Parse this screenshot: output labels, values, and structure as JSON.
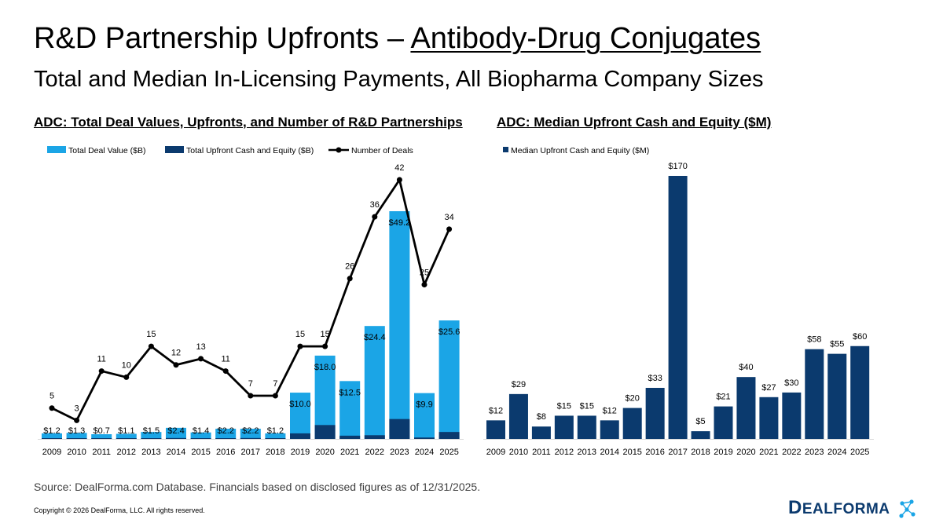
{
  "header": {
    "title_prefix": "R&D Partnership Upfronts – ",
    "title_underlined": "Antibody-Drug Conjugates",
    "subtitle": "Total and Median In-Licensing Payments, All Biopharma Company Sizes"
  },
  "chart_titles": {
    "left": "ADC: Total Deal Values, Upfronts, and Number of R&D Partnerships",
    "right": "ADC: Median Upfront Cash and Equity ($M)"
  },
  "colors": {
    "light_blue": "#1ba5e6",
    "dark_navy": "#0b3a6e",
    "line": "#000000"
  },
  "chart_data": [
    {
      "type": "bar",
      "title": "ADC: Total Deal Values, Upfronts, and Number of R&D Partnerships",
      "categories": [
        "2009",
        "2010",
        "2011",
        "2012",
        "2013",
        "2014",
        "2015",
        "2016",
        "2017",
        "2018",
        "2019",
        "2020",
        "2021",
        "2022",
        "2023",
        "2024",
        "2025"
      ],
      "series": [
        {
          "name": "Total Deal Value ($B)",
          "kind": "bar",
          "values": [
            1.2,
            1.3,
            0.7,
            1.1,
            1.5,
            2.4,
            1.4,
            2.2,
            2.2,
            1.2,
            10.0,
            18.0,
            12.5,
            24.4,
            49.2,
            9.9,
            25.6
          ],
          "labels": [
            "$1.2",
            "$1.3",
            "$0.7",
            "$1.1",
            "$1.5",
            "$2.4",
            "$1.4",
            "$2.2",
            "$2.2",
            "$1.2",
            "$10.0",
            "$18.0",
            "$12.5",
            "$24.4",
            "$49.2",
            "$9.9",
            "$25.6"
          ]
        },
        {
          "name": "Total Upfront Cash and Equity ($B)",
          "kind": "bar",
          "values": [
            0.1,
            0.1,
            0.05,
            0.1,
            0.1,
            0.2,
            0.1,
            0.15,
            0.2,
            0.1,
            1.2,
            3.0,
            0.7,
            0.8,
            4.3,
            0.3,
            1.5
          ]
        },
        {
          "name": "Number of Deals",
          "kind": "line",
          "values": [
            5,
            3,
            11,
            10,
            15,
            12,
            13,
            11,
            7,
            7,
            15,
            15,
            26,
            36,
            42,
            25,
            34
          ],
          "labels": [
            "5",
            "3",
            "11",
            "10",
            "15",
            "12",
            "13",
            "11",
            "7",
            "7",
            "15",
            "15",
            "26",
            "36",
            "42",
            "25",
            "34"
          ]
        }
      ],
      "bar_ylim": [
        0,
        50
      ],
      "line_ylim": [
        0,
        46
      ],
      "legend": "top"
    },
    {
      "type": "bar",
      "title": "ADC: Median Upfront Cash and Equity ($M)",
      "categories": [
        "2009",
        "2010",
        "2011",
        "2012",
        "2013",
        "2014",
        "2015",
        "2016",
        "2017",
        "2018",
        "2019",
        "2020",
        "2021",
        "2022",
        "2023",
        "2024",
        "2025"
      ],
      "series": [
        {
          "name": "Median Upfront Cash and Equity ($M)",
          "values": [
            12,
            29,
            8,
            15,
            15,
            12,
            20,
            33,
            170,
            5,
            21,
            40,
            27,
            30,
            58,
            55,
            60
          ],
          "labels": [
            "$12",
            "$29",
            "$8",
            "$15",
            "$15",
            "$12",
            "$20",
            "$33",
            "$170",
            "$5",
            "$21",
            "$40",
            "$27",
            "$30",
            "$58",
            "$55",
            "$60"
          ]
        }
      ],
      "ylim": [
        0,
        170
      ],
      "legend": "top-left"
    }
  ],
  "footer": {
    "source": "Source: DealForma.com Database. Financials based on disclosed figures as of 12/31/2025.",
    "copyright": "Copyright © 2026 DealForma, LLC. All rights reserved.",
    "logo_big_d": "D",
    "logo_rest": "EALFORMA"
  }
}
